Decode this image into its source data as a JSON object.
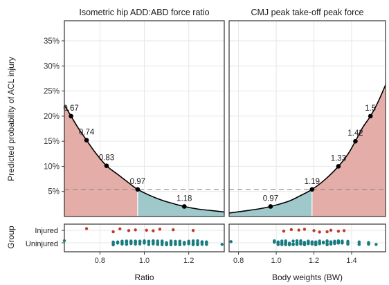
{
  "figure": {
    "y_axis_label": "Predicted probability of ACL injury",
    "group_axis_label": "Group",
    "group_labels": [
      "Injured",
      "Uninjured"
    ]
  },
  "colors": {
    "injured": "#c0392b",
    "uninjured": "#177b80",
    "high_risk_fill": "#e4ada7",
    "low_risk_fill": "#9fc8cb",
    "curve": "#000000",
    "threshold": "#888888",
    "grid": "#e6e6e6"
  },
  "chart_data": [
    {
      "type": "line",
      "title": "Isometric hip ADD:ABD force ratio",
      "xlabel": "Ratio",
      "ylabel": "Predicted probability of ACL injury",
      "xlim": [
        0.64,
        1.36
      ],
      "ylim": [
        0,
        0.39
      ],
      "x_ticks": [
        0.8,
        1.0,
        1.2
      ],
      "x_tick_labels": [
        "0.8",
        "1.0",
        "1.2"
      ],
      "y_ticks": [
        0.05,
        0.1,
        0.15,
        0.2,
        0.25,
        0.3,
        0.35
      ],
      "y_tick_labels": [
        "5%",
        "10%",
        "15%",
        "20%",
        "25%",
        "30%",
        "35%"
      ],
      "curve": {
        "x": [
          0.64,
          0.67,
          0.7,
          0.74,
          0.78,
          0.83,
          0.88,
          0.93,
          0.97,
          1.02,
          1.07,
          1.12,
          1.18,
          1.24,
          1.3,
          1.36
        ],
        "y": [
          0.222,
          0.2,
          0.178,
          0.152,
          0.127,
          0.101,
          0.084,
          0.067,
          0.054,
          0.043,
          0.034,
          0.027,
          0.02,
          0.015,
          0.012,
          0.009
        ]
      },
      "labeled_points": [
        {
          "x": 0.67,
          "y": 0.2,
          "label": "0.67"
        },
        {
          "x": 0.74,
          "y": 0.152,
          "label": "0.74"
        },
        {
          "x": 0.83,
          "y": 0.101,
          "label": "0.83"
        },
        {
          "x": 0.97,
          "y": 0.054,
          "label": "0.97"
        },
        {
          "x": 1.18,
          "y": 0.02,
          "label": "1.18"
        }
      ],
      "threshold": {
        "y": 0.054,
        "x_cut": 0.97,
        "high_risk_side": "left"
      },
      "injured_x": [
        0.74,
        0.86,
        0.89,
        0.93,
        0.96,
        1.01,
        1.04,
        1.07,
        1.13,
        1.22
      ],
      "uninjured_x": [
        0.64,
        0.86,
        0.88,
        0.9,
        0.92,
        0.94,
        0.96,
        0.98,
        1.0,
        1.02,
        1.04,
        1.06,
        1.08,
        1.1,
        1.12,
        1.14,
        1.16,
        1.18,
        1.2,
        1.22,
        1.24,
        1.26,
        1.28,
        1.35
      ]
    },
    {
      "type": "line",
      "title": "CMJ peak take-off peak force",
      "xlabel": "Body weights (BW)",
      "ylabel": "",
      "xlim": [
        0.75,
        1.58
      ],
      "ylim": [
        0,
        0.39
      ],
      "x_ticks": [
        0.8,
        1.0,
        1.2,
        1.4
      ],
      "x_tick_labels": [
        "0.8",
        "1.0",
        "1.2",
        "1.4"
      ],
      "curve": {
        "x": [
          0.75,
          0.85,
          0.92,
          0.97,
          1.02,
          1.07,
          1.12,
          1.19,
          1.26,
          1.33,
          1.38,
          1.42,
          1.46,
          1.5,
          1.54,
          1.58
        ],
        "y": [
          0.007,
          0.012,
          0.016,
          0.02,
          0.025,
          0.031,
          0.04,
          0.054,
          0.074,
          0.1,
          0.124,
          0.15,
          0.178,
          0.2,
          0.228,
          0.262
        ]
      },
      "labeled_points": [
        {
          "x": 0.97,
          "y": 0.02,
          "label": "0.97"
        },
        {
          "x": 1.19,
          "y": 0.054,
          "label": "1.19"
        },
        {
          "x": 1.33,
          "y": 0.1,
          "label": "1.33"
        },
        {
          "x": 1.42,
          "y": 0.15,
          "label": "1.42"
        },
        {
          "x": 1.5,
          "y": 0.2,
          "label": "1.5"
        }
      ],
      "threshold": {
        "y": 0.054,
        "x_cut": 1.19,
        "high_risk_side": "right"
      },
      "injured_x": [
        1.04,
        1.08,
        1.12,
        1.15,
        1.2,
        1.23,
        1.27,
        1.29,
        1.33,
        1.36
      ],
      "uninjured_x": [
        0.76,
        0.99,
        1.01,
        1.03,
        1.05,
        1.07,
        1.09,
        1.11,
        1.13,
        1.15,
        1.17,
        1.19,
        1.21,
        1.23,
        1.25,
        1.27,
        1.29,
        1.31,
        1.33,
        1.35,
        1.38,
        1.44,
        1.49,
        1.53
      ]
    }
  ]
}
